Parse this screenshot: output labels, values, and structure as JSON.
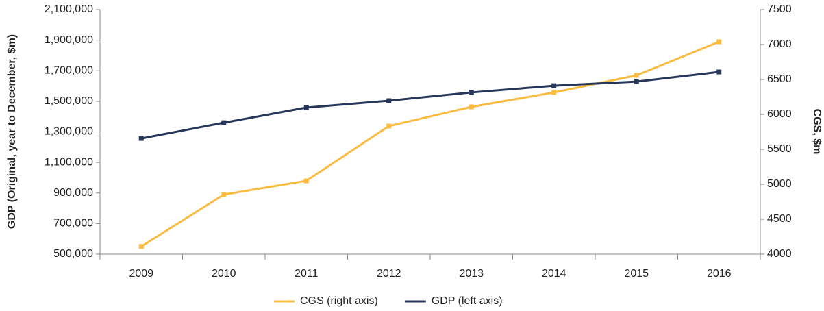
{
  "chart_data": {
    "type": "line",
    "categories": [
      "2009",
      "2010",
      "2011",
      "2012",
      "2013",
      "2014",
      "2015",
      "2016"
    ],
    "series": [
      {
        "name": "CGS (right axis)",
        "color": "#f9bc40",
        "axis": "y2",
        "values": [
          4110,
          4853,
          5049,
          5833,
          6108,
          6314,
          6559,
          7039
        ]
      },
      {
        "name": "GDP (left axis)",
        "color": "#27375a",
        "values": [
          1257000,
          1360000,
          1459000,
          1504000,
          1558000,
          1602000,
          1629000,
          1692000
        ]
      }
    ],
    "ylabel": "GDP (Original, year to December, $m)",
    "y2label": "CGS, $m",
    "ylim": [
      500000,
      2100000
    ],
    "yticks": [
      {
        "value": 500000,
        "label": "500,000"
      },
      {
        "value": 700000,
        "label": "700,000"
      },
      {
        "value": 900000,
        "label": "900,000"
      },
      {
        "value": 1100000,
        "label": "1,100,000"
      },
      {
        "value": 1300000,
        "label": "1,300,000"
      },
      {
        "value": 1500000,
        "label": "1,500,000"
      },
      {
        "value": 1700000,
        "label": "1,700,000"
      },
      {
        "value": 1900000,
        "label": "1,900,000"
      },
      {
        "value": 2100000,
        "label": "2,100,000"
      }
    ],
    "y2lim": [
      4000,
      7500
    ],
    "y2ticks": [
      4000,
      4500,
      5000,
      5500,
      6000,
      6500,
      7000,
      7500
    ],
    "legend": "bottom",
    "grid": false
  }
}
